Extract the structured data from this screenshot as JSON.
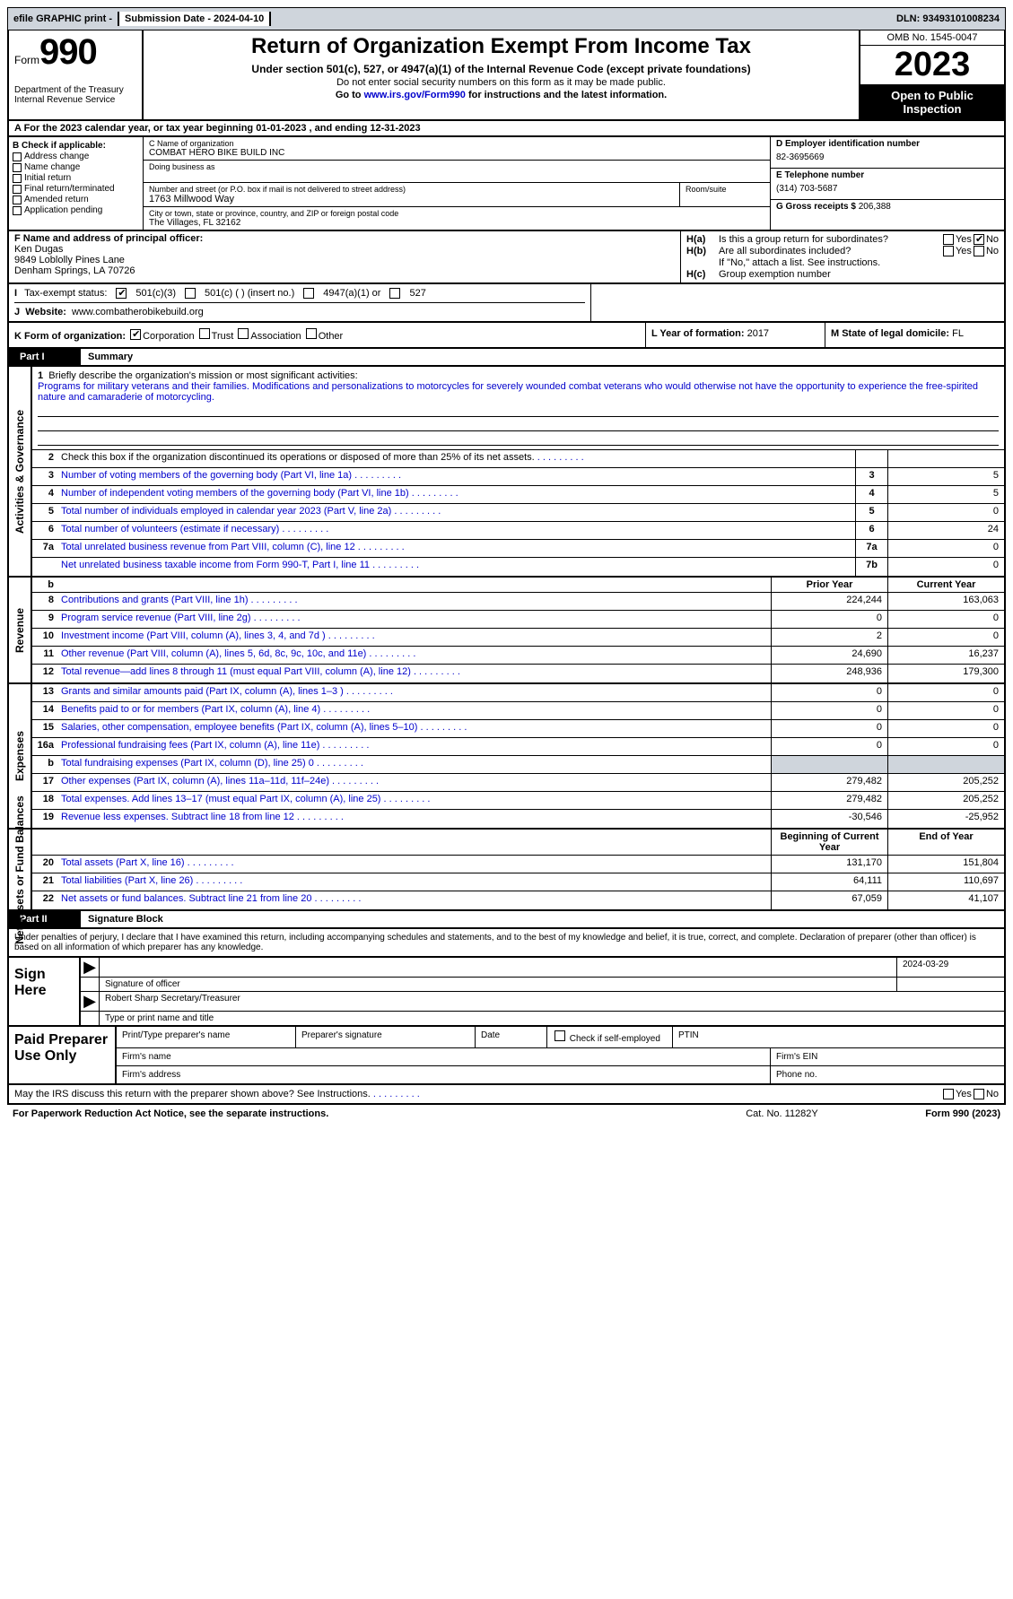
{
  "top": {
    "efile": "efile GRAPHIC print -",
    "submission": "Submission Date - 2024-04-10",
    "dln": "DLN: 93493101008234"
  },
  "header": {
    "form_word": "Form",
    "form_num": "990",
    "dept": "Department of the Treasury Internal Revenue Service",
    "title": "Return of Organization Exempt From Income Tax",
    "sub1": "Under section 501(c), 527, or 4947(a)(1) of the Internal Revenue Code (except private foundations)",
    "sub2": "Do not enter social security numbers on this form as it may be made public.",
    "sub3_pre": "Go to ",
    "sub3_link": "www.irs.gov/Form990",
    "sub3_post": " for instructions and the latest information.",
    "omb": "OMB No. 1545-0047",
    "year": "2023",
    "open": "Open to Public Inspection"
  },
  "period": "A  For the 2023 calendar year, or tax year beginning 01-01-2023    , and ending 12-31-2023",
  "B": {
    "label": "B Check if applicable:",
    "items": [
      "Address change",
      "Name change",
      "Initial return",
      "Final return/terminated",
      "Amended return",
      "Application pending"
    ]
  },
  "C": {
    "name_lbl": "C Name of organization",
    "name": "COMBAT HERO BIKE BUILD INC",
    "dba_lbl": "Doing business as",
    "addr_lbl": "Number and street (or P.O. box if mail is not delivered to street address)",
    "addr": "1763 Millwood Way",
    "room_lbl": "Room/suite",
    "city_lbl": "City or town, state or province, country, and ZIP or foreign postal code",
    "city": "The Villages, FL  32162"
  },
  "D": {
    "lbl": "D Employer identification number",
    "val": "82-3695669"
  },
  "E": {
    "lbl": "E Telephone number",
    "val": "(314) 703-5687"
  },
  "G": {
    "lbl": "G Gross receipts $",
    "val": "206,388"
  },
  "F": {
    "lbl": "F  Name and address of principal officer:",
    "line1": "Ken Dugas",
    "line2": "9849 Loblolly Pines Lane",
    "line3": "Denham Springs, LA  70726"
  },
  "H": {
    "a": "Is this a group return for subordinates?",
    "b": "Are all subordinates included?",
    "b_note": "If \"No,\" attach a list. See instructions.",
    "c": "Group exemption number"
  },
  "I": {
    "lbl": "Tax-exempt status:",
    "o1": "501(c)(3)",
    "o2": "501(c) (  ) (insert no.)",
    "o3": "4947(a)(1) or",
    "o4": "527"
  },
  "J": {
    "lbl": "Website:",
    "val": "www.combatherobikebuild.org"
  },
  "K": {
    "lbl": "K Form of organization:",
    "opts": [
      "Corporation",
      "Trust",
      "Association",
      "Other"
    ]
  },
  "L": {
    "lbl": "L Year of formation:",
    "val": "2017"
  },
  "M": {
    "lbl": "M State of legal domicile:",
    "val": "FL"
  },
  "part1_label": "Part I",
  "part1_title": "Summary",
  "mission": {
    "num": "1",
    "lbl": "Briefly describe the organization's mission or most significant activities:",
    "txt": "Programs for military veterans and their families. Modifications and personalizations to motorcycles for severely wounded combat veterans who would otherwise not have the opportunity to experience the free-spirited nature and camaraderie of motorcycling."
  },
  "gov_lines": [
    {
      "n": "2",
      "d": "Check this box   if the organization discontinued its operations or disposed of more than 25% of its net assets.",
      "box": "",
      "v": ""
    },
    {
      "n": "3",
      "d": "Number of voting members of the governing body (Part VI, line 1a)",
      "box": "3",
      "v": "5"
    },
    {
      "n": "4",
      "d": "Number of independent voting members of the governing body (Part VI, line 1b)",
      "box": "4",
      "v": "5"
    },
    {
      "n": "5",
      "d": "Total number of individuals employed in calendar year 2023 (Part V, line 2a)",
      "box": "5",
      "v": "0"
    },
    {
      "n": "6",
      "d": "Total number of volunteers (estimate if necessary)",
      "box": "6",
      "v": "24"
    },
    {
      "n": "7a",
      "d": "Total unrelated business revenue from Part VIII, column (C), line 12",
      "box": "7a",
      "v": "0"
    },
    {
      "n": "",
      "d": "Net unrelated business taxable income from Form 990-T, Part I, line 11",
      "box": "7b",
      "v": "0"
    }
  ],
  "col_hdrs": {
    "prior": "Prior Year",
    "current": "Current Year"
  },
  "rev_lines": [
    {
      "n": "8",
      "d": "Contributions and grants (Part VIII, line 1h)",
      "p": "224,244",
      "c": "163,063"
    },
    {
      "n": "9",
      "d": "Program service revenue (Part VIII, line 2g)",
      "p": "0",
      "c": "0"
    },
    {
      "n": "10",
      "d": "Investment income (Part VIII, column (A), lines 3, 4, and 7d )",
      "p": "2",
      "c": "0"
    },
    {
      "n": "11",
      "d": "Other revenue (Part VIII, column (A), lines 5, 6d, 8c, 9c, 10c, and 11e)",
      "p": "24,690",
      "c": "16,237"
    },
    {
      "n": "12",
      "d": "Total revenue—add lines 8 through 11 (must equal Part VIII, column (A), line 12)",
      "p": "248,936",
      "c": "179,300"
    }
  ],
  "exp_lines": [
    {
      "n": "13",
      "d": "Grants and similar amounts paid (Part IX, column (A), lines 1–3 )",
      "p": "0",
      "c": "0"
    },
    {
      "n": "14",
      "d": "Benefits paid to or for members (Part IX, column (A), line 4)",
      "p": "0",
      "c": "0"
    },
    {
      "n": "15",
      "d": "Salaries, other compensation, employee benefits (Part IX, column (A), lines 5–10)",
      "p": "0",
      "c": "0"
    },
    {
      "n": "16a",
      "d": "Professional fundraising fees (Part IX, column (A), line 11e)",
      "p": "0",
      "c": "0"
    },
    {
      "n": "b",
      "d": "Total fundraising expenses (Part IX, column (D), line 25) 0",
      "p": "grey",
      "c": "grey"
    },
    {
      "n": "17",
      "d": "Other expenses (Part IX, column (A), lines 11a–11d, 11f–24e)",
      "p": "279,482",
      "c": "205,252"
    },
    {
      "n": "18",
      "d": "Total expenses. Add lines 13–17 (must equal Part IX, column (A), line 25)",
      "p": "279,482",
      "c": "205,252"
    },
    {
      "n": "19",
      "d": "Revenue less expenses. Subtract line 18 from line 12",
      "p": "-30,546",
      "c": "-25,952"
    }
  ],
  "net_hdrs": {
    "begin": "Beginning of Current Year",
    "end": "End of Year"
  },
  "net_lines": [
    {
      "n": "20",
      "d": "Total assets (Part X, line 16)",
      "p": "131,170",
      "c": "151,804"
    },
    {
      "n": "21",
      "d": "Total liabilities (Part X, line 26)",
      "p": "64,111",
      "c": "110,697"
    },
    {
      "n": "22",
      "d": "Net assets or fund balances. Subtract line 21 from line 20",
      "p": "67,059",
      "c": "41,107"
    }
  ],
  "vlabels": {
    "gov": "Activities & Governance",
    "rev": "Revenue",
    "exp": "Expenses",
    "net": "Net Assets or Fund Balances"
  },
  "part2_label": "Part II",
  "part2_title": "Signature Block",
  "sig_intro": "Under penalties of perjury, I declare that I have examined this return, including accompanying schedules and statements, and to the best of my knowledge and belief, it is true, correct, and complete. Declaration of preparer (other than officer) is based on all information of which preparer has any knowledge.",
  "sign": {
    "label": "Sign Here",
    "date": "2024-03-29",
    "sig_lbl": "Signature of officer",
    "name": "Robert Sharp  Secretary/Treasurer",
    "name_lbl": "Type or print name and title"
  },
  "prep": {
    "label": "Paid Preparer Use Only",
    "c1": "Print/Type preparer's name",
    "c2": "Preparer's signature",
    "c3": "Date",
    "c4": "Check   if self-employed",
    "c5": "PTIN",
    "firm_name": "Firm's name",
    "firm_ein": "Firm's EIN",
    "firm_addr": "Firm's address",
    "phone": "Phone no."
  },
  "discuss": "May the IRS discuss this return with the preparer shown above? See Instructions.",
  "footer": {
    "left": "For Paperwork Reduction Act Notice, see the separate instructions.",
    "mid": "Cat. No. 11282Y",
    "right": "Form 990 (2023)"
  }
}
